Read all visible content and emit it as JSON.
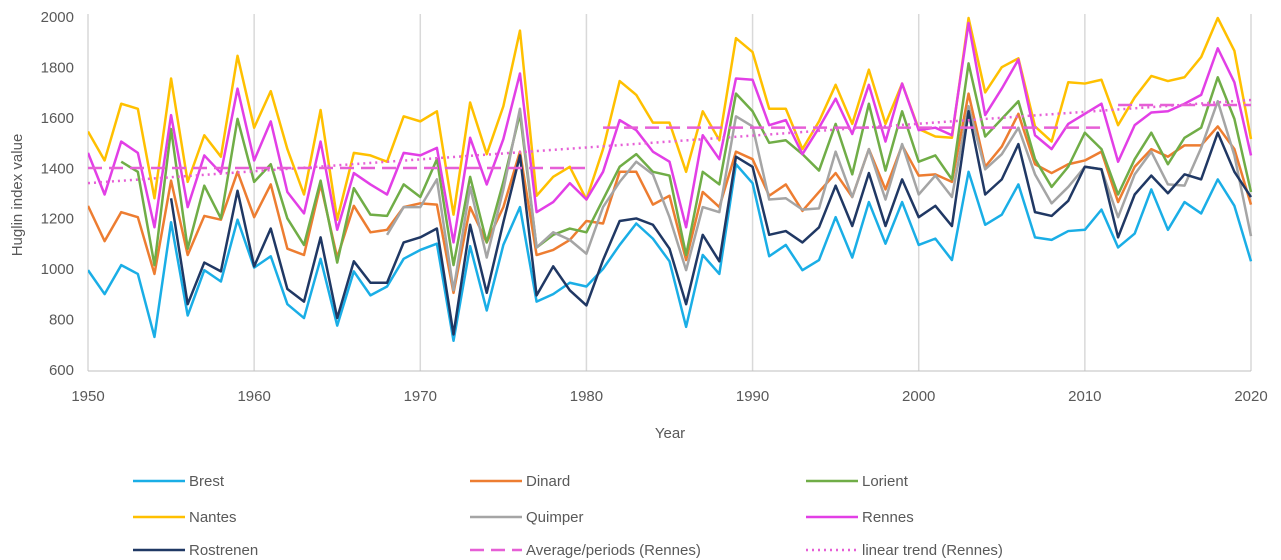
{
  "chart_data": {
    "type": "line",
    "x_label": "Year",
    "y_label": "Huglin index value",
    "x": [
      1950,
      1951,
      1952,
      1953,
      1954,
      1955,
      1956,
      1957,
      1958,
      1959,
      1960,
      1961,
      1962,
      1963,
      1964,
      1965,
      1966,
      1967,
      1968,
      1969,
      1970,
      1971,
      1972,
      1973,
      1974,
      1975,
      1976,
      1977,
      1978,
      1979,
      1980,
      1981,
      1982,
      1983,
      1984,
      1985,
      1986,
      1987,
      1988,
      1989,
      1990,
      1991,
      1992,
      1993,
      1994,
      1995,
      1996,
      1997,
      1998,
      1999,
      2000,
      2001,
      2002,
      2003,
      2004,
      2005,
      2006,
      2007,
      2008,
      2009,
      2010,
      2011,
      2012,
      2013,
      2014,
      2015,
      2016,
      2017,
      2018,
      2019,
      2020
    ],
    "xlim": [
      1950,
      2020
    ],
    "xticks": [
      1950,
      1960,
      1970,
      1980,
      1990,
      2000,
      2010,
      2020
    ],
    "ylim": [
      600,
      2000
    ],
    "yticks": [
      600,
      800,
      1000,
      1200,
      1400,
      1600,
      1800,
      2000
    ],
    "grid": "x",
    "legend": "bottom",
    "series": [
      {
        "name": "Brest",
        "color": "#1aaee6",
        "dash": "solid",
        "values": [
          1000,
          905,
          1020,
          985,
          735,
          1190,
          820,
          1000,
          955,
          1200,
          1010,
          1055,
          865,
          810,
          1045,
          780,
          995,
          900,
          935,
          1045,
          1080,
          1105,
          720,
          1095,
          840,
          1100,
          1250,
          875,
          905,
          950,
          935,
          1005,
          1100,
          1185,
          1125,
          1035,
          775,
          1060,
          985,
          1420,
          1345,
          1055,
          1100,
          1000,
          1040,
          1210,
          1050,
          1270,
          1105,
          1270,
          1100,
          1125,
          1040,
          1390,
          1180,
          1220,
          1340,
          1130,
          1120,
          1155,
          1160,
          1240,
          1090,
          1145,
          1320,
          1160,
          1270,
          1225,
          1360,
          1255,
          1035
        ]
      },
      {
        "name": "Dinard",
        "color": "#ed7d31",
        "dash": "solid",
        "values": [
          1255,
          1115,
          1230,
          1210,
          985,
          1355,
          1060,
          1215,
          1200,
          1390,
          1210,
          1340,
          1085,
          1060,
          1340,
          1050,
          1255,
          1150,
          1160,
          1250,
          1265,
          1260,
          910,
          1250,
          1110,
          1250,
          1470,
          1060,
          1080,
          1120,
          1195,
          1185,
          1390,
          1390,
          1260,
          1295,
          1040,
          1310,
          1250,
          1470,
          1440,
          1295,
          1340,
          1235,
          1310,
          1385,
          1290,
          1480,
          1320,
          1495,
          1375,
          1380,
          1350,
          1700,
          1410,
          1490,
          1620,
          1420,
          1385,
          1420,
          1435,
          1470,
          1270,
          1410,
          1480,
          1450,
          1495,
          1495,
          1570,
          1480,
          1260
        ]
      },
      {
        "name": "Lorient",
        "color": "#70ad47",
        "dash": "solid",
        "values": [
          null,
          null,
          1430,
          1390,
          1020,
          1560,
          1085,
          1335,
          1205,
          1600,
          1350,
          1420,
          1205,
          1100,
          1355,
          1030,
          1325,
          1220,
          1215,
          1340,
          1290,
          1440,
          1020,
          1370,
          1110,
          1350,
          1620,
          1090,
          1140,
          1165,
          1150,
          1280,
          1410,
          1460,
          1390,
          1375,
          1060,
          1390,
          1340,
          1700,
          1630,
          1505,
          1515,
          1460,
          1395,
          1580,
          1380,
          1660,
          1395,
          1630,
          1430,
          1455,
          1360,
          1820,
          1530,
          1600,
          1670,
          1440,
          1330,
          1410,
          1545,
          1480,
          1300,
          1440,
          1545,
          1420,
          1525,
          1565,
          1765,
          1600,
          1310
        ]
      },
      {
        "name": "Nantes",
        "color": "#ffc000",
        "dash": "solid",
        "values": [
          1550,
          1435,
          1660,
          1640,
          1285,
          1760,
          1350,
          1535,
          1450,
          1850,
          1565,
          1710,
          1480,
          1300,
          1635,
          1200,
          1465,
          1455,
          1430,
          1610,
          1590,
          1630,
          1220,
          1665,
          1460,
          1650,
          1950,
          1295,
          1370,
          1410,
          1280,
          1480,
          1750,
          1695,
          1585,
          1585,
          1390,
          1630,
          1515,
          1920,
          1865,
          1640,
          1640,
          1480,
          1590,
          1735,
          1580,
          1795,
          1580,
          1740,
          1560,
          1530,
          1525,
          2000,
          1705,
          1805,
          1840,
          1570,
          1510,
          1745,
          1740,
          1755,
          1575,
          1685,
          1770,
          1750,
          1765,
          1845,
          2000,
          1870,
          1520
        ]
      },
      {
        "name": "Quimper",
        "color": "#a5a5a5",
        "dash": "solid",
        "values": [
          null,
          null,
          null,
          null,
          null,
          null,
          null,
          null,
          null,
          null,
          null,
          null,
          null,
          null,
          null,
          null,
          null,
          null,
          1140,
          1250,
          1250,
          1360,
          920,
          1330,
          1050,
          1320,
          1640,
          1090,
          1150,
          1120,
          1065,
          1250,
          1350,
          1430,
          1380,
          1210,
          1000,
          1250,
          1230,
          1610,
          1570,
          1280,
          1285,
          1240,
          1245,
          1470,
          1290,
          1480,
          1280,
          1500,
          1300,
          1375,
          1290,
          1650,
          1400,
          1460,
          1565,
          1380,
          1265,
          1330,
          1410,
          1400,
          1210,
          1380,
          1470,
          1340,
          1335,
          1485,
          1670,
          1455,
          1135
        ]
      },
      {
        "name": "Rennes",
        "color": "#e23fe6",
        "dash": "solid",
        "values": [
          1465,
          1300,
          1510,
          1465,
          1170,
          1615,
          1250,
          1455,
          1385,
          1720,
          1435,
          1590,
          1310,
          1225,
          1510,
          1160,
          1385,
          1340,
          1300,
          1465,
          1455,
          1485,
          1110,
          1525,
          1340,
          1520,
          1780,
          1230,
          1270,
          1345,
          1280,
          1390,
          1595,
          1555,
          1470,
          1430,
          1170,
          1535,
          1440,
          1760,
          1755,
          1575,
          1595,
          1460,
          1565,
          1680,
          1540,
          1735,
          1510,
          1740,
          1555,
          1565,
          1535,
          1980,
          1615,
          1720,
          1835,
          1535,
          1480,
          1580,
          1620,
          1660,
          1430,
          1575,
          1625,
          1630,
          1660,
          1695,
          1880,
          1745,
          1455
        ]
      },
      {
        "name": "Rostrenen",
        "color": "#203864",
        "dash": "solid",
        "values": [
          null,
          null,
          null,
          null,
          null,
          1285,
          865,
          1030,
          995,
          1315,
          1015,
          1165,
          925,
          875,
          1130,
          810,
          1035,
          950,
          950,
          1110,
          1130,
          1165,
          745,
          1180,
          910,
          1190,
          1455,
          900,
          1015,
          920,
          860,
          1040,
          1195,
          1205,
          1180,
          1085,
          865,
          1140,
          1035,
          1450,
          1410,
          1140,
          1155,
          1110,
          1170,
          1335,
          1175,
          1385,
          1175,
          1360,
          1210,
          1255,
          1175,
          1630,
          1300,
          1360,
          1500,
          1230,
          1215,
          1275,
          1410,
          1400,
          1130,
          1300,
          1375,
          1305,
          1380,
          1360,
          1545,
          1390,
          1290
        ]
      },
      {
        "name": "Average/periods (Rennes)",
        "color": "#e65fd6",
        "dash": "dashed",
        "x": [
          1950,
          1980,
          1980,
          1981,
          2011,
          2011,
          2012,
          2020
        ],
        "values": [
          1405,
          1405,
          null,
          1565,
          1565,
          null,
          1655,
          1655
        ]
      },
      {
        "name": "linear trend (Rennes)",
        "color": "#e65fd6",
        "dash": "dotted",
        "x": [
          1950,
          2020
        ],
        "values": [
          1345,
          1675
        ]
      }
    ]
  }
}
